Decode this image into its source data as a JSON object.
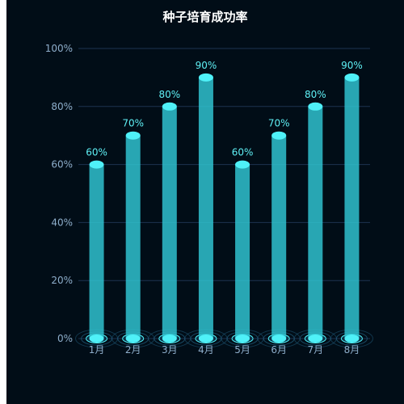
{
  "chart_data": {
    "type": "bar",
    "title": "种子培育成功率",
    "categories": [
      "1月",
      "2月",
      "3月",
      "4月",
      "5月",
      "6月",
      "7月",
      "8月"
    ],
    "values": [
      60,
      70,
      80,
      90,
      60,
      70,
      80,
      90
    ],
    "value_labels": [
      "60%",
      "70%",
      "80%",
      "90%",
      "60%",
      "70%",
      "80%",
      "90%"
    ],
    "y_ticks": [
      "0%",
      "20%",
      "40%",
      "60%",
      "80%",
      "100%"
    ],
    "ylim": [
      0,
      100
    ],
    "grid": true,
    "colors": {
      "background": "#010d17",
      "bar_fill": "#2fc2cf",
      "bar_cap": "#4ff1f8",
      "label": "#5ff0f5",
      "axis_text": "#8eaecb",
      "grid": "#1d3350",
      "ring": "#1f5a78"
    }
  }
}
